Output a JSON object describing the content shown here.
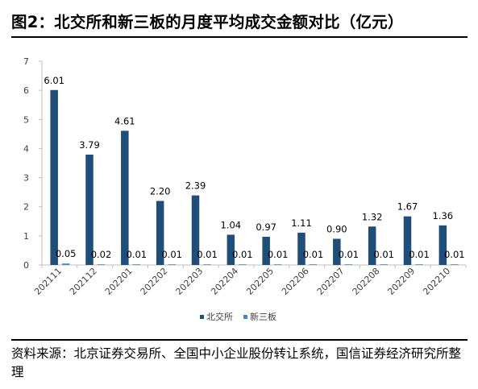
{
  "title": "图2：北交所和新三板的月度平均成交金额对比（亿元）",
  "source": "资料来源：北京证券交易所、全国中小企业股份转让系统，国信证券经济研究所整理",
  "colors": {
    "beijiao": "#1f4e79",
    "xinsanban": "#4a86c5",
    "axis": "#bfbfbf",
    "text": "#404040"
  },
  "chart_data": {
    "type": "bar",
    "categories": [
      "202111",
      "202112",
      "202201",
      "202202",
      "202203",
      "202204",
      "202205",
      "202206",
      "202207",
      "202208",
      "202209",
      "202210"
    ],
    "series": [
      {
        "name": "北交所",
        "values": [
          6.01,
          3.79,
          4.61,
          2.2,
          2.39,
          1.04,
          0.97,
          1.11,
          0.9,
          1.32,
          1.67,
          1.36
        ]
      },
      {
        "name": "新三板",
        "values": [
          0.05,
          0.02,
          0.01,
          0.01,
          0.01,
          0.01,
          0.01,
          0.01,
          0.01,
          0.01,
          0.01,
          0.01
        ]
      }
    ],
    "ylim": [
      0,
      7
    ],
    "yticks": [
      0,
      1,
      2,
      3,
      4,
      5,
      6,
      7
    ],
    "data_labels": [
      [
        "6.01",
        "3.79",
        "4.61",
        "2.20",
        "2.39",
        "1.04",
        "0.97",
        "1.11",
        "0.90",
        "1.32",
        "1.67",
        "1.36"
      ],
      [
        "0.05",
        "0.02",
        "0.01",
        "0.01",
        "0.01",
        "0.01",
        "0.01",
        "0.01",
        "0.01",
        "0.01",
        "0.01",
        "0.01"
      ]
    ],
    "legend_position": "bottom-center",
    "grid": false
  }
}
